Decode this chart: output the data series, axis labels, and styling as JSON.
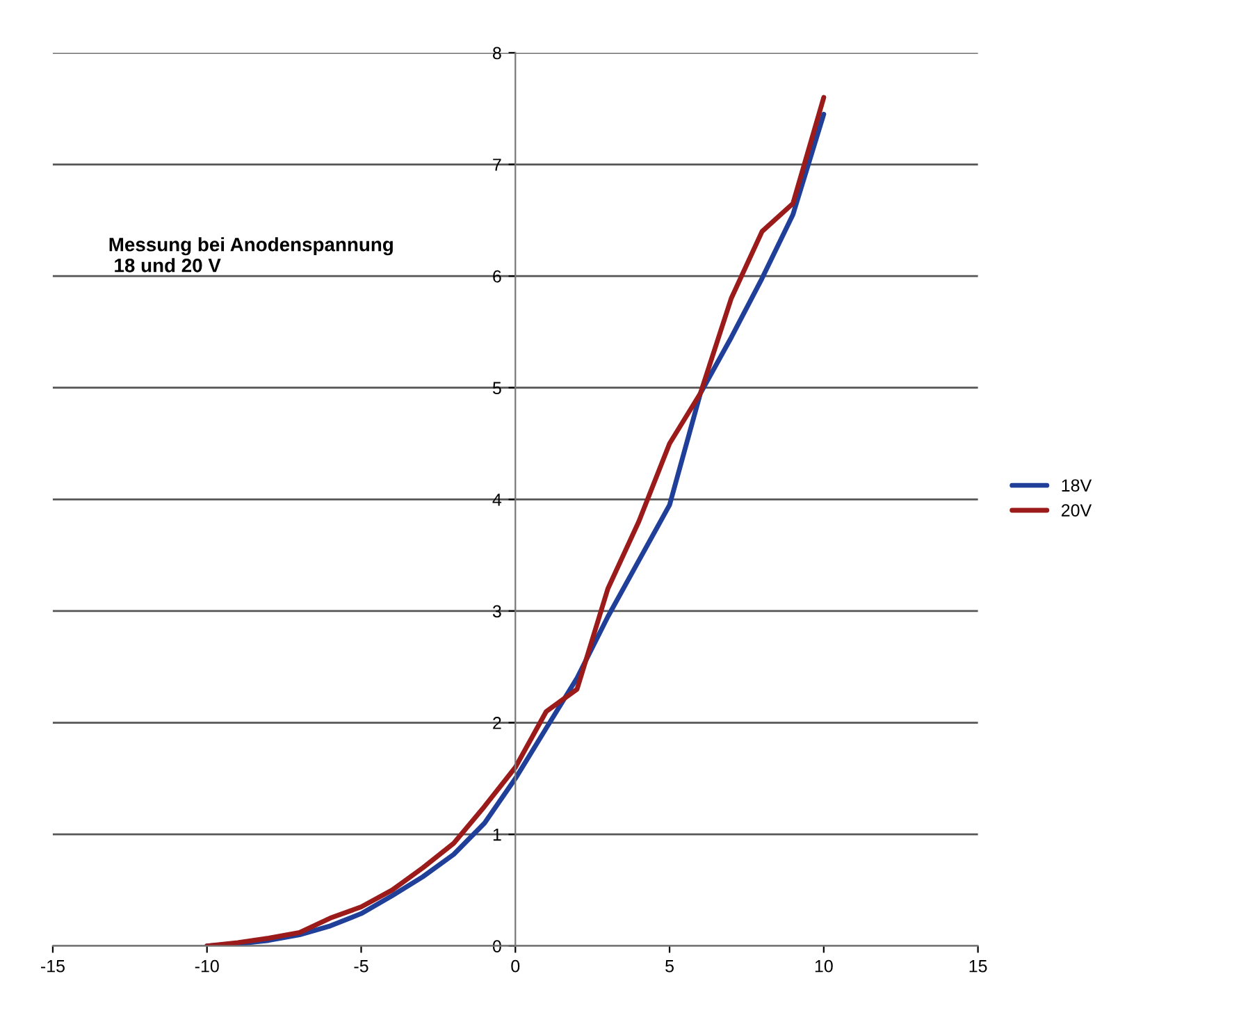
{
  "chart_data": {
    "type": "line",
    "annotations": [
      "Messung bei Anodenspannung\n 18 und 20 V"
    ],
    "x": [
      -10,
      -9,
      -8,
      -7,
      -6,
      -5,
      -4,
      -3,
      -2,
      -1,
      0,
      1,
      2,
      3,
      4,
      5,
      6,
      7,
      8,
      9,
      10
    ],
    "series": [
      {
        "name": "18V",
        "color": "#1f3f99",
        "values": [
          0,
          0.02,
          0.05,
          0.1,
          0.18,
          0.29,
          0.45,
          0.62,
          0.82,
          1.1,
          1.5,
          1.95,
          2.4,
          2.95,
          3.45,
          3.95,
          4.95,
          5.45,
          5.98,
          6.55,
          7.45
        ]
      },
      {
        "name": "20V",
        "color": "#9b1a1a",
        "values": [
          0,
          0.03,
          0.07,
          0.12,
          0.25,
          0.35,
          0.5,
          0.7,
          0.92,
          1.25,
          1.6,
          2.1,
          2.3,
          3.2,
          3.8,
          4.5,
          4.95,
          5.8,
          6.4,
          6.65,
          7.6
        ]
      }
    ],
    "xlim": [
      -15,
      15
    ],
    "xticks": [
      -15,
      -10,
      -5,
      0,
      5,
      10,
      15
    ],
    "ylim": [
      0,
      8
    ],
    "yticks": [
      0,
      1,
      2,
      3,
      4,
      5,
      6,
      7,
      8
    ],
    "grid": "y",
    "legend": "right",
    "marker": "none",
    "line_style": "solid"
  }
}
